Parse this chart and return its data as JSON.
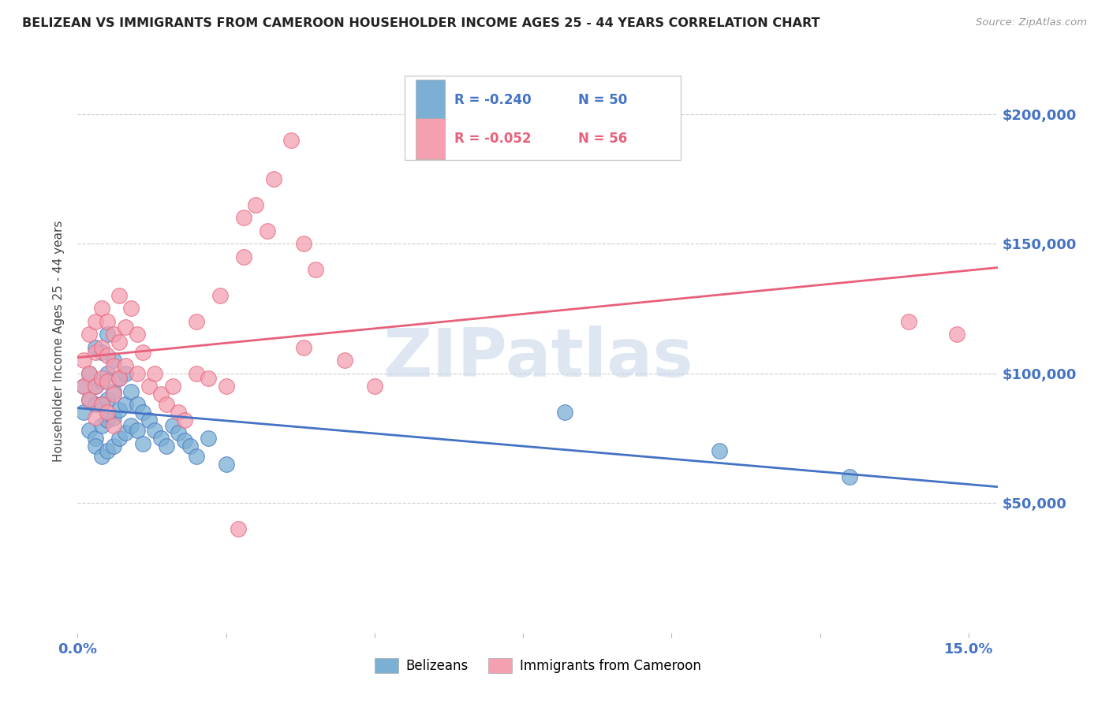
{
  "title": "BELIZEAN VS IMMIGRANTS FROM CAMEROON HOUSEHOLDER INCOME AGES 25 - 44 YEARS CORRELATION CHART",
  "source": "Source: ZipAtlas.com",
  "ylabel": "Householder Income Ages 25 - 44 years",
  "y_tick_labels": [
    "$50,000",
    "$100,000",
    "$150,000",
    "$200,000"
  ],
  "y_tick_values": [
    50000,
    100000,
    150000,
    200000
  ],
  "ylim": [
    0,
    225000
  ],
  "xlim": [
    0,
    0.155
  ],
  "legend_r1": "R = -0.240",
  "legend_n1": "N = 50",
  "legend_r2": "R = -0.052",
  "legend_n2": "N = 56",
  "legend_label1": "Belizeans",
  "legend_label2": "Immigrants from Cameroon",
  "blue_color": "#7BAFD4",
  "pink_color": "#F4A0B0",
  "blue_line_color": "#4472C4",
  "pink_line_color": "#E8607A",
  "title_color": "#222222",
  "axis_label_color": "#444444",
  "ytick_color": "#4472C4",
  "xtick_color": "#4472C4",
  "watermark": "ZIPatlas",
  "blue_scatter_x": [
    0.001,
    0.001,
    0.002,
    0.002,
    0.002,
    0.003,
    0.003,
    0.003,
    0.003,
    0.003,
    0.004,
    0.004,
    0.004,
    0.004,
    0.004,
    0.005,
    0.005,
    0.005,
    0.005,
    0.005,
    0.006,
    0.006,
    0.006,
    0.006,
    0.007,
    0.007,
    0.007,
    0.008,
    0.008,
    0.008,
    0.009,
    0.009,
    0.01,
    0.01,
    0.011,
    0.011,
    0.012,
    0.013,
    0.014,
    0.015,
    0.016,
    0.017,
    0.018,
    0.019,
    0.02,
    0.022,
    0.025,
    0.082,
    0.108,
    0.13
  ],
  "blue_scatter_y": [
    95000,
    85000,
    100000,
    90000,
    78000,
    110000,
    95000,
    88000,
    75000,
    72000,
    108000,
    97000,
    88000,
    80000,
    68000,
    115000,
    100000,
    90000,
    82000,
    70000,
    105000,
    93000,
    83000,
    72000,
    98000,
    86000,
    75000,
    100000,
    88000,
    77000,
    93000,
    80000,
    88000,
    78000,
    85000,
    73000,
    82000,
    78000,
    75000,
    72000,
    80000,
    77000,
    74000,
    72000,
    68000,
    75000,
    65000,
    85000,
    70000,
    60000
  ],
  "pink_scatter_x": [
    0.001,
    0.001,
    0.002,
    0.002,
    0.002,
    0.003,
    0.003,
    0.003,
    0.003,
    0.004,
    0.004,
    0.004,
    0.004,
    0.005,
    0.005,
    0.005,
    0.005,
    0.006,
    0.006,
    0.006,
    0.006,
    0.007,
    0.007,
    0.007,
    0.008,
    0.008,
    0.009,
    0.01,
    0.01,
    0.011,
    0.012,
    0.013,
    0.014,
    0.015,
    0.016,
    0.017,
    0.018,
    0.02,
    0.022,
    0.025,
    0.028,
    0.03,
    0.033,
    0.036,
    0.038,
    0.04,
    0.032,
    0.028,
    0.024,
    0.02,
    0.038,
    0.045,
    0.05,
    0.027,
    0.14,
    0.148
  ],
  "pink_scatter_y": [
    105000,
    95000,
    115000,
    100000,
    90000,
    120000,
    108000,
    95000,
    83000,
    125000,
    110000,
    98000,
    88000,
    120000,
    107000,
    97000,
    85000,
    115000,
    103000,
    92000,
    80000,
    130000,
    112000,
    98000,
    118000,
    103000,
    125000,
    115000,
    100000,
    108000,
    95000,
    100000,
    92000,
    88000,
    95000,
    85000,
    82000,
    100000,
    98000,
    95000,
    145000,
    165000,
    175000,
    190000,
    150000,
    140000,
    155000,
    160000,
    130000,
    120000,
    110000,
    105000,
    95000,
    40000,
    120000,
    115000
  ]
}
